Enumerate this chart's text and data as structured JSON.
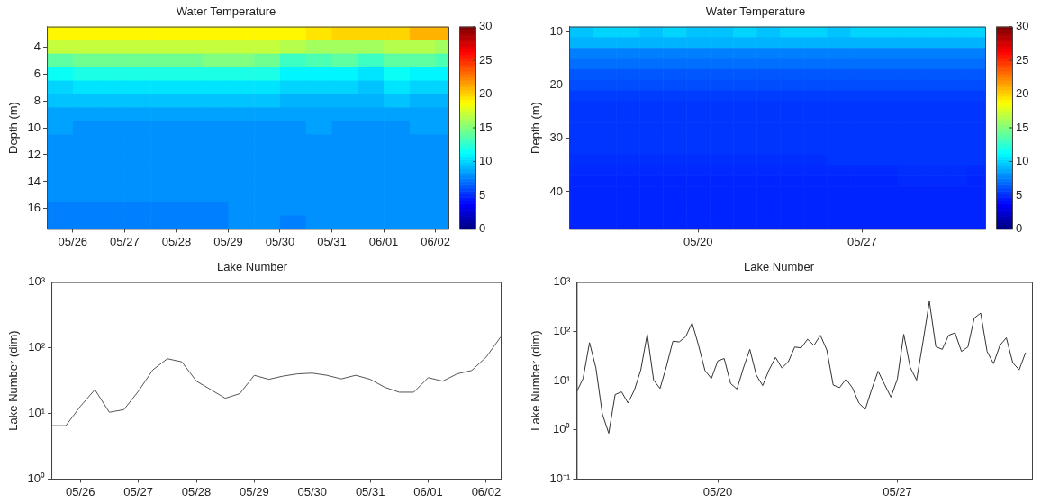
{
  "chart_data": [
    {
      "type": "heatmap",
      "title": "Water Temperature",
      "ylabel": "Depth (m)",
      "x": [
        "--05-25T18:00",
        "--05-26T06:00",
        "--05-26T18:00",
        "--05-27T06:00",
        "--05-27T18:00",
        "--05-28T06:00",
        "--05-28T18:00",
        "--05-29T06:00",
        "--05-29T18:00",
        "--05-30T06:00",
        "--05-30T18:00",
        "--05-31T06:00",
        "--05-31T18:00",
        "--06-01T06:00",
        "--06-01T18:00",
        "--06-02T06:00"
      ],
      "y_categories": [
        null,
        "4",
        null,
        "6",
        null,
        "8",
        null,
        "10",
        null,
        "12",
        null,
        "14",
        null,
        "16",
        null
      ],
      "cells": [
        [
          19,
          19,
          19,
          19,
          19,
          19,
          19,
          19,
          19,
          19,
          19.5,
          20,
          20,
          20,
          21,
          21
        ],
        [
          17,
          17,
          17,
          17,
          17,
          17,
          17,
          17,
          17,
          16.5,
          16,
          16,
          16,
          16.5,
          16.5,
          16
        ],
        [
          14,
          14.5,
          14.5,
          14.5,
          14.5,
          14.5,
          15,
          15,
          14.5,
          13,
          13.5,
          14,
          13,
          14,
          14,
          13.5
        ],
        [
          11.5,
          12,
          12,
          12,
          12,
          12,
          12,
          12,
          12,
          11,
          11,
          11,
          10.5,
          11.5,
          11,
          11
        ],
        [
          10,
          10.5,
          10.5,
          10.5,
          10.5,
          10.5,
          10.5,
          10.5,
          10.5,
          10,
          10,
          10,
          9.5,
          10.5,
          10,
          10
        ],
        [
          9.5,
          9.5,
          9.5,
          9.5,
          9.5,
          9.5,
          9.5,
          9.5,
          9.5,
          9,
          9,
          9,
          9,
          9.5,
          9,
          9
        ],
        [
          8.5,
          8.5,
          8.5,
          8.5,
          8.5,
          8.5,
          8.5,
          8.5,
          8.5,
          8.5,
          8.5,
          8.5,
          8.5,
          8.5,
          8.5,
          8.5
        ],
        [
          8.5,
          8,
          8,
          8,
          8,
          8,
          8,
          8,
          8,
          8,
          8.5,
          8,
          8,
          8,
          8.5,
          8.5
        ],
        [
          8,
          8,
          8,
          8,
          8,
          8,
          8,
          8,
          8,
          8,
          8,
          8,
          8,
          8,
          8,
          8
        ],
        [
          8,
          8,
          8,
          8,
          8,
          8,
          8,
          8,
          8,
          8,
          8,
          8,
          8,
          8,
          8,
          8
        ],
        [
          8,
          8,
          8,
          8,
          8,
          8,
          8,
          8,
          8,
          8,
          8,
          8,
          8,
          8,
          8,
          8
        ],
        [
          8,
          8,
          8,
          8,
          8,
          8,
          8,
          8,
          8,
          8,
          8,
          8,
          8,
          8,
          8,
          8
        ],
        [
          8,
          8,
          8,
          8,
          8,
          8,
          8,
          8,
          8,
          8,
          8,
          8,
          8,
          8,
          8,
          8
        ],
        [
          7.5,
          7.5,
          7.5,
          7.5,
          7.5,
          7.5,
          7.5,
          8,
          8,
          8,
          8,
          8,
          8,
          8,
          8,
          8
        ],
        [
          7.5,
          7.5,
          7.5,
          7.5,
          7.5,
          7.5,
          7.5,
          8,
          8,
          7.5,
          8,
          8,
          8,
          8,
          8,
          8
        ]
      ],
      "xlim": [
        "--05-25T12:00",
        "--06-02T06:00"
      ],
      "xticks": [
        {
          "value": "--05-26",
          "label": "05/26"
        },
        {
          "value": "--05-27",
          "label": "05/27"
        },
        {
          "value": "--05-28",
          "label": "05/28"
        },
        {
          "value": "--05-29",
          "label": "05/29"
        },
        {
          "value": "--05-30",
          "label": "05/30"
        },
        {
          "value": "--05-31",
          "label": "05/31"
        },
        {
          "value": "--06-01",
          "label": "06/01"
        },
        {
          "value": "--06-02",
          "label": "06/02"
        }
      ],
      "clim": [
        0,
        30
      ],
      "cticks": [
        0,
        5,
        10,
        15,
        20,
        25,
        30
      ]
    },
    {
      "type": "heatmap",
      "title": "Water Temperature",
      "ylabel": "Depth (m)",
      "x": [
        "--05-15",
        "--05-16",
        "--05-17",
        "--05-18",
        "--05-19",
        "--05-20",
        "--05-21",
        "--05-22",
        "--05-23",
        "--05-24",
        "--05-25",
        "--05-26",
        "--05-27",
        "--05-28",
        "--05-29",
        "--05-30",
        "--05-31",
        "--06-01"
      ],
      "y_categories": [
        "10",
        null,
        null,
        null,
        null,
        "20",
        null,
        null,
        null,
        null,
        "30",
        null,
        null,
        null,
        null,
        "40",
        null,
        null,
        null
      ],
      "cells": [
        [
          9.5,
          10,
          10,
          9.5,
          10,
          9.5,
          9.5,
          10,
          9.5,
          10,
          10,
          9.5,
          10,
          10,
          10,
          10,
          10,
          10
        ],
        [
          9,
          9,
          9,
          9,
          9,
          9,
          9,
          9,
          9,
          9,
          9,
          9,
          9,
          9,
          9,
          9,
          9,
          9
        ],
        [
          7.5,
          7.5,
          7.5,
          7.5,
          7.5,
          7.5,
          7.5,
          7.5,
          7.5,
          7.5,
          7.5,
          7.5,
          7.5,
          7.5,
          7.5,
          7.5,
          7.5,
          7.5
        ],
        [
          7,
          7,
          7,
          7,
          7,
          7,
          7,
          7,
          7,
          7,
          7,
          7,
          7,
          7,
          7,
          7,
          7,
          7
        ],
        [
          6.3,
          6.3,
          6.3,
          6.3,
          6.3,
          6.3,
          6.3,
          6.3,
          6.3,
          6.3,
          6.3,
          6.3,
          6.3,
          6.3,
          6.3,
          6.3,
          6.3,
          6.3
        ],
        [
          6,
          6,
          6,
          6,
          6,
          6,
          6,
          6,
          6,
          6,
          6,
          6,
          6,
          6,
          6,
          6,
          6,
          6
        ],
        [
          5.5,
          5.5,
          5.5,
          5.5,
          5.5,
          5.5,
          5.5,
          5.5,
          5.5,
          5.5,
          5.5,
          5.5,
          5.5,
          5.5,
          5.5,
          5.5,
          5.5,
          5.5
        ],
        [
          5.3,
          5.3,
          5.3,
          5.3,
          5.3,
          5.3,
          5.3,
          5.3,
          5.3,
          5.3,
          5.3,
          5.3,
          5.3,
          5.3,
          5.3,
          5.3,
          5.3,
          5.3
        ],
        [
          5.3,
          5.3,
          5.3,
          5.3,
          5.3,
          5.3,
          5.3,
          5.3,
          5.3,
          5.3,
          5.3,
          5.3,
          5.3,
          5.3,
          5.3,
          5.3,
          5.3,
          5.3
        ],
        [
          5.3,
          5.3,
          5.3,
          5.3,
          5.3,
          5.3,
          5.3,
          5.3,
          5.3,
          5.3,
          5.3,
          5.3,
          5.3,
          5.3,
          5.3,
          5.3,
          5.3,
          5.3
        ],
        [
          5.3,
          5.3,
          5.3,
          5.3,
          5.3,
          5.3,
          5.3,
          5.3,
          5.3,
          5.3,
          5.3,
          5.3,
          5.3,
          5.3,
          5.3,
          5.3,
          5.3,
          5.3
        ],
        [
          5.3,
          5.3,
          5.3,
          5.3,
          5.3,
          5.3,
          5.3,
          5.3,
          5.3,
          5.3,
          5.3,
          5.3,
          5.3,
          5.3,
          5.3,
          5.3,
          5.3,
          5.3
        ],
        [
          5.1,
          5.1,
          5.1,
          5.1,
          5.1,
          5.1,
          5.1,
          5.1,
          5.1,
          5.1,
          5.1,
          5.3,
          5.3,
          5.3,
          5.3,
          5.3,
          5.3,
          5.3
        ],
        [
          5,
          5,
          5,
          5,
          5,
          5,
          5,
          5,
          5,
          5,
          5,
          5,
          5,
          5,
          5.1,
          5.1,
          5.1,
          5
        ],
        [
          4.8,
          4.8,
          4.8,
          4.8,
          4.8,
          4.8,
          4.8,
          4.8,
          4.8,
          4.8,
          4.8,
          4.8,
          4.8,
          4.8,
          5,
          5,
          5,
          4.8
        ],
        [
          4.8,
          4.8,
          4.8,
          4.8,
          4.8,
          4.8,
          4.8,
          4.8,
          4.8,
          4.8,
          4.8,
          4.8,
          4.8,
          4.8,
          4.8,
          4.8,
          4.8,
          4.8
        ],
        [
          4.8,
          4.8,
          4.8,
          4.8,
          4.8,
          4.8,
          4.8,
          4.8,
          4.8,
          4.8,
          4.8,
          4.8,
          4.8,
          4.8,
          4.8,
          4.8,
          4.8,
          4.8
        ],
        [
          4.8,
          4.8,
          4.8,
          4.8,
          4.8,
          4.8,
          4.8,
          4.8,
          4.8,
          4.8,
          4.8,
          4.8,
          4.8,
          4.8,
          4.8,
          4.8,
          4.8,
          4.8
        ],
        [
          4.8,
          4.8,
          4.8,
          4.8,
          4.8,
          4.8,
          4.8,
          4.8,
          4.8,
          4.8,
          4.8,
          4.8,
          4.8,
          4.8,
          4.8,
          4.8,
          4.8,
          4.8
        ]
      ],
      "xlim": [
        "--05-14T12:00",
        "--06-01T06:00"
      ],
      "xticks": [
        {
          "value": "--05-20",
          "label": "05/20"
        },
        {
          "value": "--05-27",
          "label": "05/27"
        }
      ],
      "clim": [
        0,
        30
      ],
      "cticks": [
        0,
        5,
        10,
        15,
        20,
        25,
        30
      ]
    },
    {
      "type": "line",
      "title": "Lake Number",
      "ylabel": "Lake Number (dim)",
      "log": true,
      "x": [
        "--05-25T12:00",
        "--05-25T18:00",
        "--05-26T00:00",
        "--05-26T06:00",
        "--05-26T12:00",
        "--05-26T18:00",
        "--05-27T00:00",
        "--05-27T06:00",
        "--05-27T12:00",
        "--05-27T18:00",
        "--05-28T00:00",
        "--05-28T06:00",
        "--05-28T12:00",
        "--05-28T18:00",
        "--05-29T00:00",
        "--05-29T06:00",
        "--05-29T12:00",
        "--05-29T18:00",
        "--05-30T00:00",
        "--05-30T06:00",
        "--05-30T12:00",
        "--05-30T18:00",
        "--05-31T00:00",
        "--05-31T06:00",
        "--05-31T12:00",
        "--05-31T18:00",
        "--06-01T00:00",
        "--06-01T06:00",
        "--06-01T12:00",
        "--06-01T18:00",
        "--06-02T00:00",
        "--06-02T06:00"
      ],
      "series": [
        {
          "color": "#555555",
          "values": [
            6.5,
            6.5,
            12.8,
            23,
            10.4,
            11.4,
            21.7,
            46,
            68,
            61,
            31,
            23,
            17,
            20,
            38,
            33,
            37,
            40,
            41,
            38,
            33.5,
            38,
            33,
            25,
            21,
            21,
            35,
            31,
            40,
            45,
            72,
            146
          ]
        }
      ],
      "xlim": [
        "--05-25T12:00",
        "--06-02T06:00"
      ],
      "xticks": [
        {
          "value": "--05-26",
          "label": "05/26"
        },
        {
          "value": "--05-27",
          "label": "05/27"
        },
        {
          "value": "--05-28",
          "label": "05/28"
        },
        {
          "value": "--05-29",
          "label": "05/29"
        },
        {
          "value": "--05-30",
          "label": "05/30"
        },
        {
          "value": "--05-31",
          "label": "05/31"
        },
        {
          "value": "--06-01",
          "label": "06/01"
        },
        {
          "value": "--06-02",
          "label": "06/02"
        }
      ],
      "ylim": [
        1,
        1000
      ],
      "yticks": [
        {
          "value": 1,
          "label": "10⁰"
        },
        {
          "value": 10,
          "label": "10¹"
        },
        {
          "value": 100,
          "label": "10²"
        },
        {
          "value": 1000,
          "label": "10³"
        }
      ]
    },
    {
      "type": "line",
      "title": "Lake Number",
      "ylabel": "Lake Number (dim)",
      "log": true,
      "x": [
        "--05-14T12:00",
        "--05-14T18:00",
        "--05-15T00:00",
        "--05-15T06:00",
        "--05-15T12:00",
        "--05-15T18:00",
        "--05-16T00:00",
        "--05-16T06:00",
        "--05-16T12:00",
        "--05-16T18:00",
        "--05-17T00:00",
        "--05-17T06:00",
        "--05-17T12:00",
        "--05-17T18:00",
        "--05-18T00:00",
        "--05-18T06:00",
        "--05-18T12:00",
        "--05-18T18:00",
        "--05-19T00:00",
        "--05-19T06:00",
        "--05-19T12:00",
        "--05-19T18:00",
        "--05-20T00:00",
        "--05-20T06:00",
        "--05-20T12:00",
        "--05-20T18:00",
        "--05-21T00:00",
        "--05-21T06:00",
        "--05-21T12:00",
        "--05-21T18:00",
        "--05-22T00:00",
        "--05-22T06:00",
        "--05-22T12:00",
        "--05-22T18:00",
        "--05-23T00:00",
        "--05-23T06:00",
        "--05-23T12:00",
        "--05-23T18:00",
        "--05-24T00:00",
        "--05-24T06:00",
        "--05-24T12:00",
        "--05-24T18:00",
        "--05-25T00:00",
        "--05-25T06:00",
        "--05-25T12:00",
        "--05-25T18:00",
        "--05-26T00:00",
        "--05-26T06:00",
        "--05-26T12:00",
        "--05-26T18:00",
        "--05-27T00:00",
        "--05-27T06:00",
        "--05-27T12:00",
        "--05-27T18:00",
        "--05-28T00:00",
        "--05-28T06:00",
        "--05-28T12:00",
        "--05-28T18:00",
        "--05-29T00:00",
        "--05-29T06:00",
        "--05-29T12:00",
        "--05-29T18:00",
        "--05-30T00:00",
        "--05-30T06:00",
        "--05-30T12:00",
        "--05-30T18:00",
        "--05-31T00:00",
        "--05-31T06:00",
        "--05-31T12:00",
        "--05-31T18:00",
        "--06-01T00:00"
      ],
      "series": [
        {
          "color": "#333333",
          "values": [
            5.9,
            11,
            59,
            18,
            2.1,
            0.85,
            5.2,
            5.9,
            3.5,
            6.4,
            16.5,
            87,
            10.2,
            6.9,
            19.5,
            63,
            61,
            78,
            148,
            52,
            16,
            11,
            25,
            28,
            8.7,
            6.7,
            18,
            43,
            13,
            7.9,
            16.5,
            29.5,
            18,
            24,
            48,
            46,
            69,
            52,
            83,
            42,
            8.1,
            7.2,
            10.7,
            7.1,
            3.5,
            2.6,
            6.6,
            15.5,
            8.4,
            4.6,
            10.7,
            87,
            18.6,
            10.2,
            61,
            407,
            49,
            43,
            83,
            93,
            39,
            48,
            186,
            234,
            39,
            22,
            52,
            74,
            23,
            16.5,
            37
          ]
        }
      ],
      "xlim": [
        "--05-14T12:00",
        "--06-01T06:00"
      ],
      "xticks": [
        {
          "value": "--05-20",
          "label": "05/20"
        },
        {
          "value": "--05-27",
          "label": "05/27"
        }
      ],
      "ylim": [
        0.1,
        1000
      ],
      "yticks": [
        {
          "value": 0.1,
          "label": "10⁻¹"
        },
        {
          "value": 1,
          "label": "10⁰"
        },
        {
          "value": 10,
          "label": "10¹"
        },
        {
          "value": 100,
          "label": "10²"
        },
        {
          "value": 1000,
          "label": "10³"
        }
      ]
    }
  ]
}
